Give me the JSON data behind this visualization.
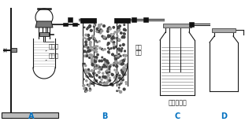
{
  "label_A": "A",
  "label_B": "B",
  "label_C": "C",
  "label_D": "D",
  "label_color": "#0070c0",
  "text_xihesuan": "稀盐酸",
  "text_shihuishui": "石灰水",
  "text_guoyanghua": "过氧",
  "text_natrium": "化钠",
  "text_chengqing": "澄清石灰水",
  "line_color": "#1a1a1a",
  "black": "#111111",
  "gray_cap": "#888888",
  "gray_fill": "#999999",
  "granule_dark": "#555555",
  "granule_light": "#cccccc"
}
